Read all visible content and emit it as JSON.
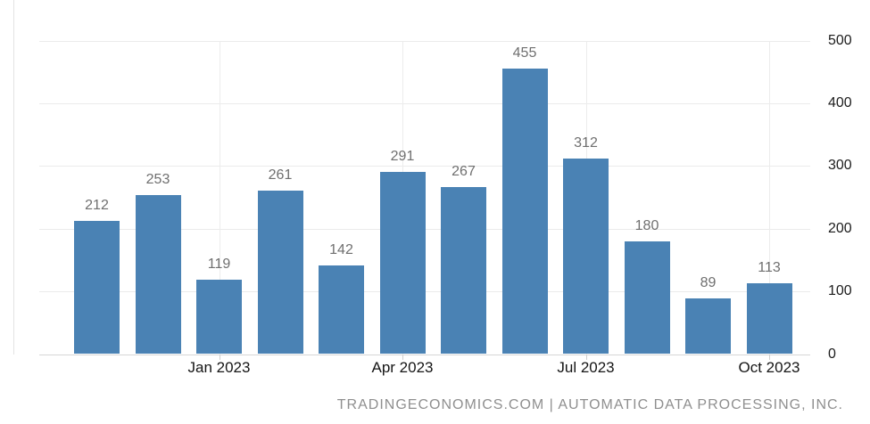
{
  "chart_data": {
    "type": "bar",
    "title": "",
    "values": [
      212,
      253,
      119,
      261,
      142,
      291,
      267,
      455,
      312,
      180,
      89,
      113
    ],
    "bar_value_labels": [
      "212",
      "253",
      "119",
      "261",
      "142",
      "291",
      "267",
      "455",
      "312",
      "180",
      "89",
      "113"
    ],
    "x_axis": {
      "tick_labels": [
        "Jan 2023",
        "Apr 2023",
        "Jul 2023",
        "Oct 2023"
      ],
      "tick_bar_indices": [
        2,
        5,
        8,
        11
      ]
    },
    "y_axis": {
      "position": "right",
      "min": 0,
      "max": 500,
      "ticks": [
        0,
        100,
        200,
        300,
        400,
        500
      ]
    },
    "grid": true,
    "legend": "none",
    "bar_color": "#4a82b4",
    "value_label_color": "#6f6f6f"
  },
  "footer": {
    "attribution": "TRADINGECONOMICS.COM | AUTOMATIC DATA PROCESSING, INC."
  }
}
